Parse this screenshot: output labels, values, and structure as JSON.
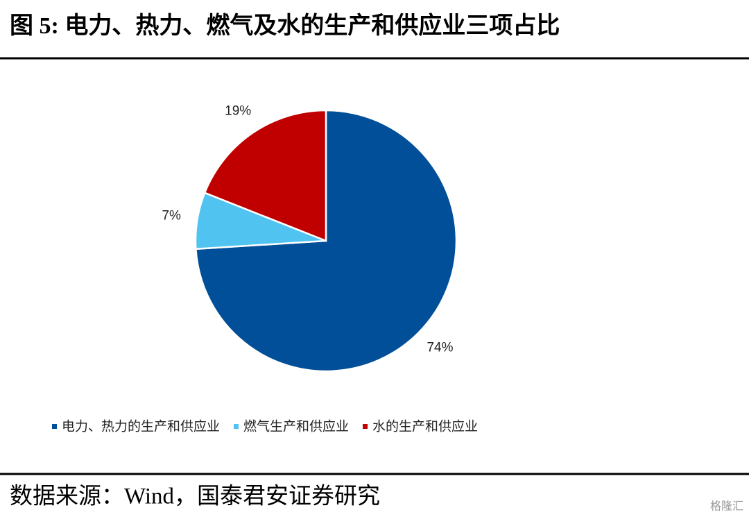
{
  "chart_data": {
    "type": "pie",
    "title": "图 5:  电力、热力、燃气及水的生产和供应业三项占比",
    "categories": [
      "电力、热力的生产和供应业",
      "燃气生产和供应业",
      "水的生产和供应业"
    ],
    "values": [
      74,
      7,
      19
    ],
    "value_labels": [
      "74%",
      "7%",
      "19%"
    ],
    "colors": [
      "#014f98",
      "#50c3f1",
      "#c00000"
    ],
    "legend": "bottom",
    "source": "数据来源：Wind，国泰君安证券研究",
    "watermark": "格隆汇"
  }
}
